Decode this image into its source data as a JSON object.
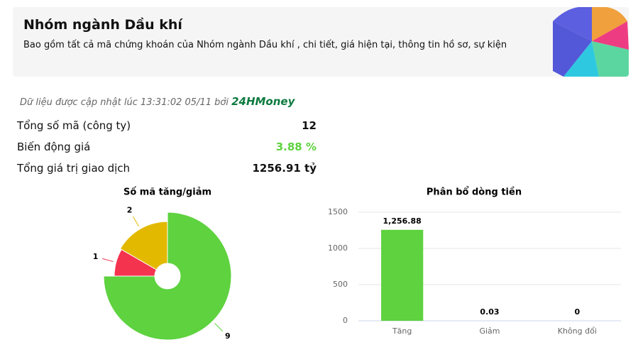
{
  "header": {
    "title": "Nhóm ngành Dầu khí",
    "description": "Bao gồm tất cả mã chứng khoán của Nhóm ngành Dầu khí , chi tiết, giá hiện tại, thông tin hồ sơ, sự kiện"
  },
  "update": {
    "text": "Dữ liệu được cập nhật lúc 13:31:02 05/11 bởi",
    "source": "24HMoney"
  },
  "stats": [
    {
      "label": "Tổng số mã (công ty)",
      "value": "12"
    },
    {
      "label": "Biến động giá",
      "value": "3.88 %"
    },
    {
      "label": "Tổng giá trị giao dịch",
      "value": "1256.91 tỷ"
    }
  ],
  "chart_data": [
    {
      "type": "pie",
      "title": "Số mã tăng/giảm",
      "values": [
        9,
        1,
        2
      ],
      "colors": [
        "#5ed23f",
        "#f4334f",
        "#e3b900"
      ]
    },
    {
      "type": "bar",
      "title": "Phân bổ dòng tiền",
      "categories": [
        "Tăng",
        "Giảm",
        "Không đổi"
      ],
      "values": [
        1256.88,
        0.03,
        0
      ],
      "value_labels": [
        "1,256.88",
        "0.03",
        "0"
      ],
      "color": "#5ed23f",
      "ylim": [
        0,
        1500
      ],
      "yticks": [
        0,
        500,
        1000,
        1500
      ],
      "grid": true
    }
  ]
}
